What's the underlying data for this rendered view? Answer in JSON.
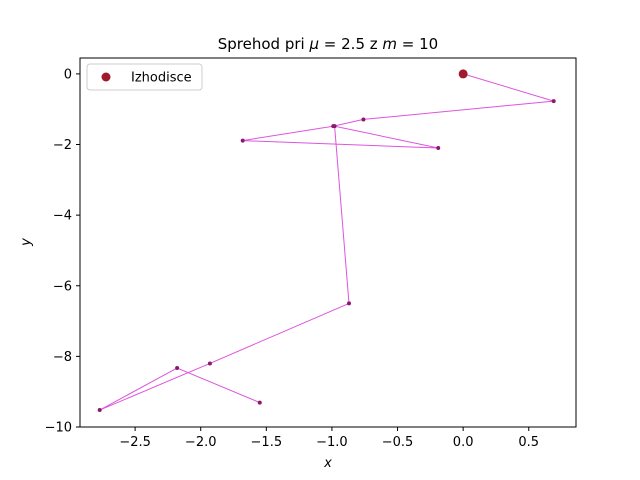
{
  "chart_data": {
    "type": "line",
    "title": "Sprehod pri μ = 2.5 z m = 10",
    "xlabel": "x",
    "ylabel": "y",
    "xlim": [
      -2.92,
      0.86
    ],
    "ylim": [
      -10,
      0.45
    ],
    "xticks": [
      -2.5,
      -2.0,
      -1.5,
      -1.0,
      -0.5,
      0.0,
      0.5
    ],
    "xtick_labels": [
      "−2.5",
      "−2.0",
      "−1.5",
      "−1.0",
      "−0.5",
      "0.0",
      "0.5"
    ],
    "yticks": [
      0,
      -2,
      -4,
      -6,
      -8,
      -10
    ],
    "ytick_labels": [
      "0",
      "−2",
      "−4",
      "−6",
      "−8",
      "−10"
    ],
    "grid": false,
    "legend": {
      "position": "top-left",
      "entries": [
        "Izhodisce"
      ]
    },
    "series": [
      {
        "name": "",
        "color": "#dd55dd",
        "marker_color": "#8b1a6b",
        "x": [
          0.0,
          0.69,
          -0.76,
          -0.99,
          -1.68,
          -0.19,
          -0.98,
          -0.87,
          -1.93,
          -2.77,
          -2.18,
          -1.55
        ],
        "y": [
          0.0,
          -0.77,
          -1.29,
          -1.48,
          -1.89,
          -2.1,
          -1.48,
          -6.5,
          -8.2,
          -9.52,
          -8.33,
          -9.31
        ]
      }
    ],
    "start_point": {
      "label": "Izhodisce",
      "x": 0.0,
      "y": 0.0,
      "color": "#a01a2e"
    }
  }
}
